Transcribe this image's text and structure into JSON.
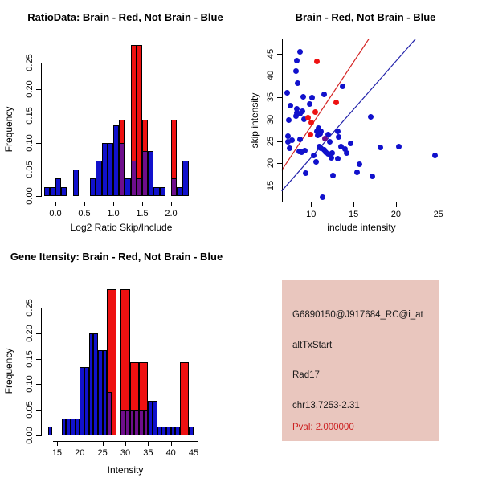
{
  "colors": {
    "blue": "#1111cc",
    "red": "#ee1111",
    "purple": "#6e0e8c",
    "line_red": "#d42222",
    "line_blue": "#2222aa",
    "axis": "#000000",
    "info_box_bg": "#e9c6be",
    "info_text": "#1a1a1a",
    "pval_red": "#cc2222",
    "background": "#ffffff"
  },
  "chart_data": [
    {
      "id": "ratio_hist",
      "type": "bar",
      "subtype": "overlaid-histogram",
      "title": "RatioData: Brain - Red, Not Brain - Blue",
      "xlabel": "Log2 Ratio Skip/Include",
      "ylabel": "Frequency",
      "legend": "Brain = red, Not Brain = blue, overlap = purple",
      "x_ticks": [
        "0.0",
        "0.5",
        "1.0",
        "1.5",
        "2.0"
      ],
      "y_ticks": [
        "0.00",
        "0.05",
        "0.10",
        "0.15",
        "0.20",
        "0.25"
      ],
      "xlim": [
        -0.25,
        2.4
      ],
      "ylim": [
        0,
        0.285
      ],
      "bin_width": 0.1,
      "blue_bars": [
        [
          -0.2,
          0.017
        ],
        [
          -0.1,
          0.017
        ],
        [
          0,
          0.033
        ],
        [
          0.1,
          0.017
        ],
        [
          0.3,
          0.05
        ],
        [
          0.6,
          0.033
        ],
        [
          0.7,
          0.067
        ],
        [
          0.8,
          0.1
        ],
        [
          0.9,
          0.1
        ],
        [
          1,
          0.133
        ],
        [
          1.1,
          0.1
        ],
        [
          1.2,
          0.033
        ],
        [
          1.3,
          0.067
        ],
        [
          1.4,
          0.033
        ],
        [
          1.5,
          0.085
        ],
        [
          1.6,
          0.085
        ],
        [
          1.7,
          0.017
        ],
        [
          1.8,
          0.017
        ],
        [
          2,
          0.033
        ],
        [
          2.1,
          0.017
        ],
        [
          2.2,
          0.067
        ]
      ],
      "red_bars": [
        [
          1.1,
          0.143
        ],
        [
          1.3,
          0.283
        ],
        [
          1.4,
          0.283
        ],
        [
          1.5,
          0.143
        ],
        [
          2,
          0.143
        ]
      ]
    },
    {
      "id": "intensity_scatter",
      "type": "scatter",
      "title": "Brain - Red, Not Brain - Blue",
      "xlabel": "include intensity",
      "ylabel": "skip intensity",
      "x_ticks": [
        "10",
        "15",
        "20",
        "25"
      ],
      "y_ticks": [
        "15",
        "20",
        "25",
        "30",
        "35",
        "40",
        "45"
      ],
      "xlim": [
        6.5,
        25.1
      ],
      "ylim": [
        11.2,
        48.3
      ],
      "blue_points": [
        [
          8.7,
          45.4
        ],
        [
          8.3,
          43.4
        ],
        [
          8.2,
          41.0
        ],
        [
          8.4,
          38.2
        ],
        [
          7.2,
          36.1
        ],
        [
          13.7,
          37.6
        ],
        [
          11.5,
          35.7
        ],
        [
          9.1,
          35.2
        ],
        [
          10.1,
          34.9
        ],
        [
          9.8,
          33.5
        ],
        [
          7.6,
          33.1
        ],
        [
          8.3,
          32.4
        ],
        [
          9.0,
          31.9
        ],
        [
          8.3,
          31.4
        ],
        [
          8.7,
          31.3
        ],
        [
          8.2,
          30.8
        ],
        [
          7.4,
          29.8
        ],
        [
          9.2,
          30.1
        ],
        [
          17.0,
          30.6
        ],
        [
          10.9,
          28.1
        ],
        [
          10.7,
          27.3
        ],
        [
          11.2,
          27.2
        ],
        [
          13.1,
          27.2
        ],
        [
          7.3,
          26.2
        ],
        [
          10.8,
          26.3
        ],
        [
          11.1,
          26.8
        ],
        [
          12.0,
          26.6
        ],
        [
          13.2,
          26.0
        ],
        [
          7.3,
          25.0
        ],
        [
          7.7,
          25.3
        ],
        [
          8.7,
          25.4
        ],
        [
          12.2,
          25.0
        ],
        [
          14.7,
          24.5
        ],
        [
          13.5,
          23.9
        ],
        [
          14.0,
          23.2
        ],
        [
          14.2,
          22.3
        ],
        [
          7.5,
          23.4
        ],
        [
          8.6,
          22.8
        ],
        [
          8.9,
          22.6
        ],
        [
          9.3,
          22.9
        ],
        [
          10.3,
          21.8
        ],
        [
          11.0,
          23.9
        ],
        [
          11.2,
          23.5
        ],
        [
          11.5,
          23.0
        ],
        [
          11.7,
          22.6
        ],
        [
          12.0,
          22.1
        ],
        [
          12.5,
          22.4
        ],
        [
          12.4,
          21.3
        ],
        [
          13.1,
          21.1
        ],
        [
          18.2,
          23.7
        ],
        [
          20.3,
          23.9
        ],
        [
          24.6,
          21.8
        ],
        [
          15.7,
          19.8
        ],
        [
          10.6,
          20.3
        ],
        [
          9.4,
          17.7
        ],
        [
          15.4,
          18.0
        ],
        [
          12.6,
          17.2
        ],
        [
          17.2,
          17.0
        ],
        [
          11.3,
          12.3
        ]
      ],
      "red_points": [
        [
          10.7,
          43.2
        ],
        [
          13.0,
          33.8
        ],
        [
          9.6,
          30.4
        ],
        [
          10.5,
          31.6
        ],
        [
          10.0,
          29.3
        ],
        [
          9.9,
          26.5
        ]
      ],
      "purple_points": [
        [
          11.6,
          25.7
        ]
      ],
      "lines": [
        {
          "color": "red",
          "points": [
            [
              6.53,
              18.4
            ],
            [
              16.8,
              48.3
            ]
          ]
        },
        {
          "color": "blue",
          "points": [
            [
              6.53,
              13.7
            ],
            [
              22.3,
              48.3
            ]
          ]
        }
      ]
    },
    {
      "id": "gene_hist",
      "type": "bar",
      "subtype": "overlaid-histogram",
      "title": "Gene Itensity: Brain - Red, Not Brain - Blue",
      "xlabel": "Intensity",
      "ylabel": "Frequency",
      "legend": "Brain = red, Not Brain = blue, overlap = purple",
      "x_ticks": [
        "15",
        "20",
        "25",
        "30",
        "35",
        "40",
        "45"
      ],
      "y_ticks": [
        "0.00",
        "0.05",
        "0.10",
        "0.15",
        "0.20",
        "0.25"
      ],
      "xlim": [
        12,
        46
      ],
      "ylim": [
        0,
        0.29
      ],
      "blue_bin_width": 1,
      "red_bin_width": 2,
      "blue_bars": [
        [
          13,
          0.017
        ],
        [
          16,
          0.033
        ],
        [
          17,
          0.033
        ],
        [
          18,
          0.033
        ],
        [
          19,
          0.033
        ],
        [
          20,
          0.133
        ],
        [
          21,
          0.133
        ],
        [
          22,
          0.2
        ],
        [
          23,
          0.2
        ],
        [
          24,
          0.167
        ],
        [
          25,
          0.167
        ],
        [
          26,
          0.085
        ],
        [
          29,
          0.05
        ],
        [
          30,
          0.05
        ],
        [
          31,
          0.05
        ],
        [
          32,
          0.05
        ],
        [
          33,
          0.05
        ],
        [
          34,
          0.05
        ],
        [
          35,
          0.067
        ],
        [
          36,
          0.067
        ],
        [
          37,
          0.017
        ],
        [
          38,
          0.017
        ],
        [
          39,
          0.017
        ],
        [
          40,
          0.017
        ],
        [
          41,
          0.017
        ],
        [
          44,
          0.017
        ]
      ],
      "red_bars": [
        [
          26,
          0.286
        ],
        [
          29,
          0.286
        ],
        [
          31,
          0.143
        ],
        [
          33,
          0.143
        ],
        [
          42,
          0.143
        ]
      ]
    }
  ],
  "info_box": {
    "probe_id": "G6890150@J917684_RC@i_at",
    "event_type": "altTxStart",
    "gene": "Rad17",
    "location": "chr13.7253-2.31",
    "pval": "Pval: 2.000000"
  }
}
